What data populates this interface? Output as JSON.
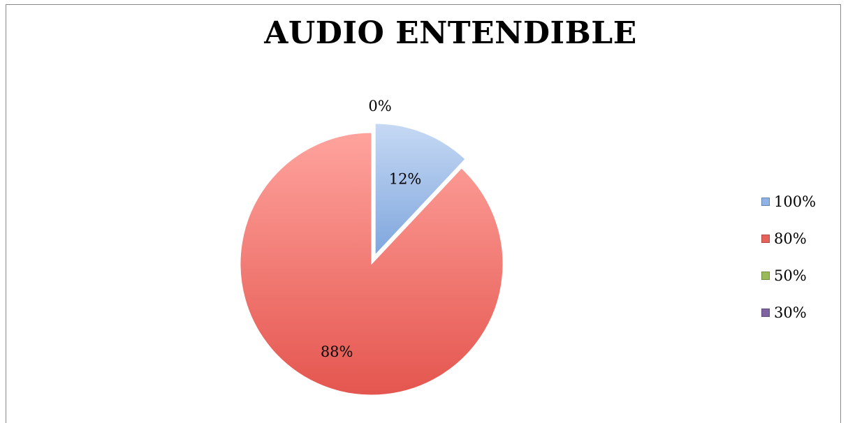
{
  "chart_data": {
    "type": "pie",
    "title": "AUDIO ENTENDIBLE",
    "categories": [
      "100%",
      "80%",
      "50%",
      "30%"
    ],
    "values": [
      12,
      88,
      0,
      0
    ],
    "data_labels": [
      "12%",
      "88%",
      "0%",
      "0%"
    ],
    "colors": [
      "#8fb3e6",
      "#e8625c",
      "#9bbb59",
      "#8064a2"
    ],
    "legend_position": "right",
    "exploded_slice": "100%"
  }
}
